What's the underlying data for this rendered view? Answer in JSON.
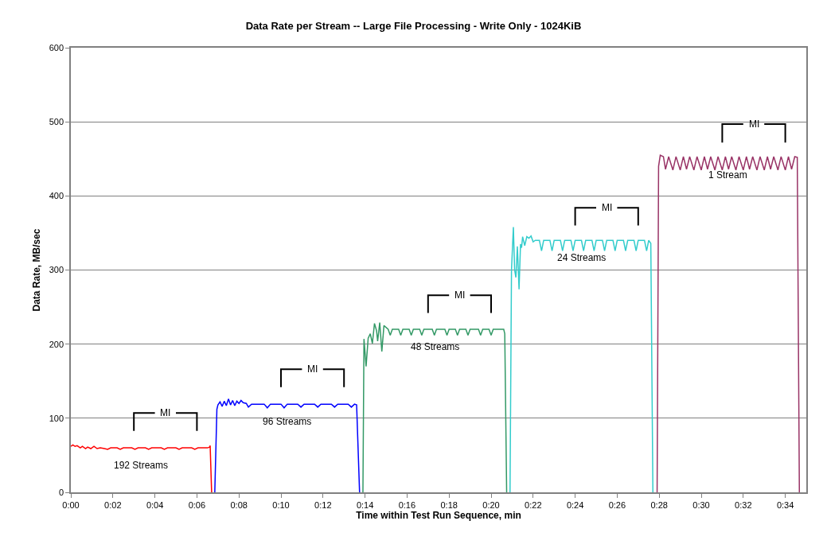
{
  "chart_data": {
    "type": "line",
    "title": "Data Rate per Stream -- Large File Processing - Write Only - 1024KiB",
    "xlabel": "Time within Test Run Sequence, min",
    "ylabel": "Data Rate, MB/sec",
    "xlim": [
      0,
      35
    ],
    "ylim": [
      0,
      600
    ],
    "yticks": [
      0,
      100,
      200,
      300,
      400,
      500,
      600
    ],
    "xticks": [
      {
        "value": 0,
        "label": "0:00"
      },
      {
        "value": 2,
        "label": "0:02"
      },
      {
        "value": 4,
        "label": "0:04"
      },
      {
        "value": 6,
        "label": "0:06"
      },
      {
        "value": 8,
        "label": "0:08"
      },
      {
        "value": 10,
        "label": "0:10"
      },
      {
        "value": 12,
        "label": "0:12"
      },
      {
        "value": 14,
        "label": "0:14"
      },
      {
        "value": 16,
        "label": "0:16"
      },
      {
        "value": 18,
        "label": "0:18"
      },
      {
        "value": 20,
        "label": "0:20"
      },
      {
        "value": 22,
        "label": "0:22"
      },
      {
        "value": 24,
        "label": "0:24"
      },
      {
        "value": 26,
        "label": "0:26"
      },
      {
        "value": 28,
        "label": "0:28"
      },
      {
        "value": 30,
        "label": "0:30"
      },
      {
        "value": 32,
        "label": "0:32"
      },
      {
        "value": 34,
        "label": "0:34"
      }
    ],
    "grid": "y",
    "legend": false,
    "marker": "none",
    "line_style": "solid",
    "series": [
      {
        "name": "192 Streams",
        "color": "#ff0000",
        "x": [
          0,
          0.1,
          0.2,
          0.3,
          0.45,
          0.55,
          0.7,
          0.8,
          0.95,
          1.1,
          1.25,
          1.4,
          1.6,
          1.75,
          1.9,
          2.2,
          2.35,
          2.5,
          2.9,
          3.05,
          3.2,
          3.55,
          3.7,
          3.85,
          4.3,
          4.45,
          4.6,
          5.0,
          5.15,
          5.3,
          5.75,
          5.9,
          6.05,
          6.5,
          6.6,
          6.63,
          6.7
        ],
        "values": [
          62,
          64,
          62,
          63,
          60,
          62,
          59,
          61,
          59,
          62,
          59,
          60,
          59,
          58,
          60,
          60,
          58,
          60,
          60,
          58,
          60,
          60,
          58,
          60,
          60,
          58,
          60,
          60,
          58,
          60,
          60,
          58,
          60,
          60,
          61,
          63,
          0
        ]
      },
      {
        "name": "96 Streams",
        "color": "#0000ff",
        "x": [
          6.85,
          6.95,
          7.0,
          7.1,
          7.2,
          7.3,
          7.4,
          7.5,
          7.6,
          7.7,
          7.8,
          7.9,
          8.0,
          8.1,
          8.2,
          8.35,
          8.45,
          8.6,
          9.2,
          9.35,
          9.5,
          10.0,
          10.15,
          10.3,
          10.8,
          10.95,
          11.1,
          11.6,
          11.75,
          11.9,
          12.4,
          12.55,
          12.7,
          13.2,
          13.35,
          13.5,
          13.6,
          13.74
        ],
        "values": [
          0,
          112,
          118,
          122,
          116,
          123,
          117,
          126,
          118,
          124,
          117,
          123,
          120,
          124,
          121,
          120,
          115,
          119,
          119,
          114,
          119,
          119,
          114,
          119,
          119,
          115,
          119,
          119,
          115,
          119,
          119,
          115,
          119,
          119,
          115,
          119,
          118,
          0
        ]
      },
      {
        "name": "48 Streams",
        "color": "#339966",
        "x": [
          13.9,
          13.95,
          14.05,
          14.15,
          14.25,
          14.35,
          14.45,
          14.55,
          14.6,
          14.7,
          14.8,
          14.9,
          15.1,
          15.2,
          15.3,
          15.6,
          15.7,
          15.8,
          16.1,
          16.2,
          16.3,
          16.6,
          16.7,
          16.8,
          17.2,
          17.3,
          17.4,
          17.8,
          17.9,
          18.0,
          18.3,
          18.4,
          18.5,
          18.8,
          18.9,
          19.0,
          19.4,
          19.5,
          19.6,
          19.9,
          20.0,
          20.1,
          20.6,
          20.65,
          20.74
        ],
        "values": [
          0,
          207,
          170,
          208,
          214,
          201,
          228,
          218,
          204,
          229,
          190,
          225,
          220,
          212,
          220,
          220,
          212,
          220,
          220,
          212,
          220,
          220,
          212,
          220,
          220,
          212,
          220,
          220,
          212,
          220,
          220,
          212,
          220,
          220,
          212,
          220,
          220,
          212,
          220,
          220,
          212,
          220,
          220,
          214,
          0
        ]
      },
      {
        "name": "24 Streams",
        "color": "#33cccc",
        "x": [
          20.9,
          20.97,
          21.06,
          21.12,
          21.18,
          21.25,
          21.33,
          21.4,
          21.45,
          21.5,
          21.6,
          21.7,
          21.8,
          21.9,
          22.0,
          22.1,
          22.3,
          22.4,
          22.5,
          22.8,
          22.9,
          23.0,
          23.3,
          23.4,
          23.5,
          23.8,
          23.9,
          24.0,
          24.3,
          24.4,
          24.5,
          24.8,
          24.9,
          25.0,
          25.3,
          25.4,
          25.5,
          25.8,
          25.9,
          26.0,
          26.3,
          26.4,
          26.5,
          26.8,
          26.9,
          27.0,
          27.3,
          27.4,
          27.5,
          27.6,
          27.7
        ],
        "values": [
          0,
          300,
          358,
          300,
          290,
          332,
          274,
          335,
          330,
          345,
          333,
          345,
          343,
          346,
          338,
          340,
          340,
          326,
          340,
          340,
          326,
          340,
          340,
          326,
          340,
          340,
          326,
          340,
          340,
          326,
          340,
          340,
          326,
          340,
          340,
          326,
          340,
          340,
          326,
          340,
          340,
          326,
          340,
          340,
          326,
          340,
          340,
          326,
          340,
          336,
          0
        ]
      },
      {
        "color": "#000000",
        "x": [
          3,
          3,
          4.0
        ],
        "values": [
          83,
          107,
          107
        ]
      },
      {
        "color": "#000000",
        "x": [
          5.0,
          6,
          6
        ],
        "values": [
          107,
          107,
          83
        ]
      },
      {
        "color": "#000000",
        "x": [
          10,
          10,
          11.0
        ],
        "values": [
          142,
          166,
          166
        ]
      },
      {
        "color": "#000000",
        "x": [
          12.0,
          13,
          13
        ],
        "values": [
          166,
          166,
          142
        ]
      },
      {
        "color": "#000000",
        "x": [
          17,
          17,
          18.0
        ],
        "values": [
          242,
          266,
          266
        ]
      },
      {
        "color": "#000000",
        "x": [
          19.0,
          20,
          20
        ],
        "values": [
          266,
          266,
          242
        ]
      },
      {
        "color": "#000000",
        "x": [
          24,
          24,
          25.0
        ],
        "values": [
          360,
          384,
          384
        ]
      },
      {
        "color": "#000000",
        "x": [
          26.0,
          27,
          27
        ],
        "values": [
          384,
          384,
          360
        ]
      },
      {
        "color": "#000000",
        "x": [
          31,
          31,
          32.0
        ],
        "values": [
          472,
          497,
          497
        ]
      },
      {
        "color": "#000000",
        "x": [
          33.0,
          34,
          34
        ],
        "values": [
          497,
          497,
          472
        ]
      },
      {
        "name": "1 Stream",
        "color": "#993366",
        "x": [
          27.9,
          27.97,
          28.05,
          28.2,
          28.3,
          28.45,
          28.65,
          28.8,
          29.0,
          29.15,
          29.3,
          29.45,
          29.65,
          29.8,
          30.0,
          30.15,
          30.3,
          30.45,
          30.65,
          30.8,
          31.0,
          31.15,
          31.3,
          31.45,
          31.65,
          31.8,
          32.0,
          32.15,
          32.3,
          32.45,
          32.65,
          32.8,
          33.0,
          33.15,
          33.3,
          33.45,
          33.65,
          33.8,
          34.0,
          34.15,
          34.3,
          34.45,
          34.57,
          34.67
        ],
        "values": [
          0,
          440,
          455,
          453,
          436,
          453,
          435,
          453,
          435,
          453,
          436,
          453,
          435,
          453,
          435,
          453,
          436,
          453,
          435,
          453,
          435,
          453,
          436,
          453,
          435,
          453,
          435,
          453,
          436,
          453,
          435,
          453,
          435,
          453,
          436,
          453,
          435,
          453,
          435,
          453,
          436,
          453,
          452,
          0
        ]
      }
    ],
    "annotations": [
      "MI",
      "MI",
      "MI",
      "MI",
      "MI"
    ]
  }
}
